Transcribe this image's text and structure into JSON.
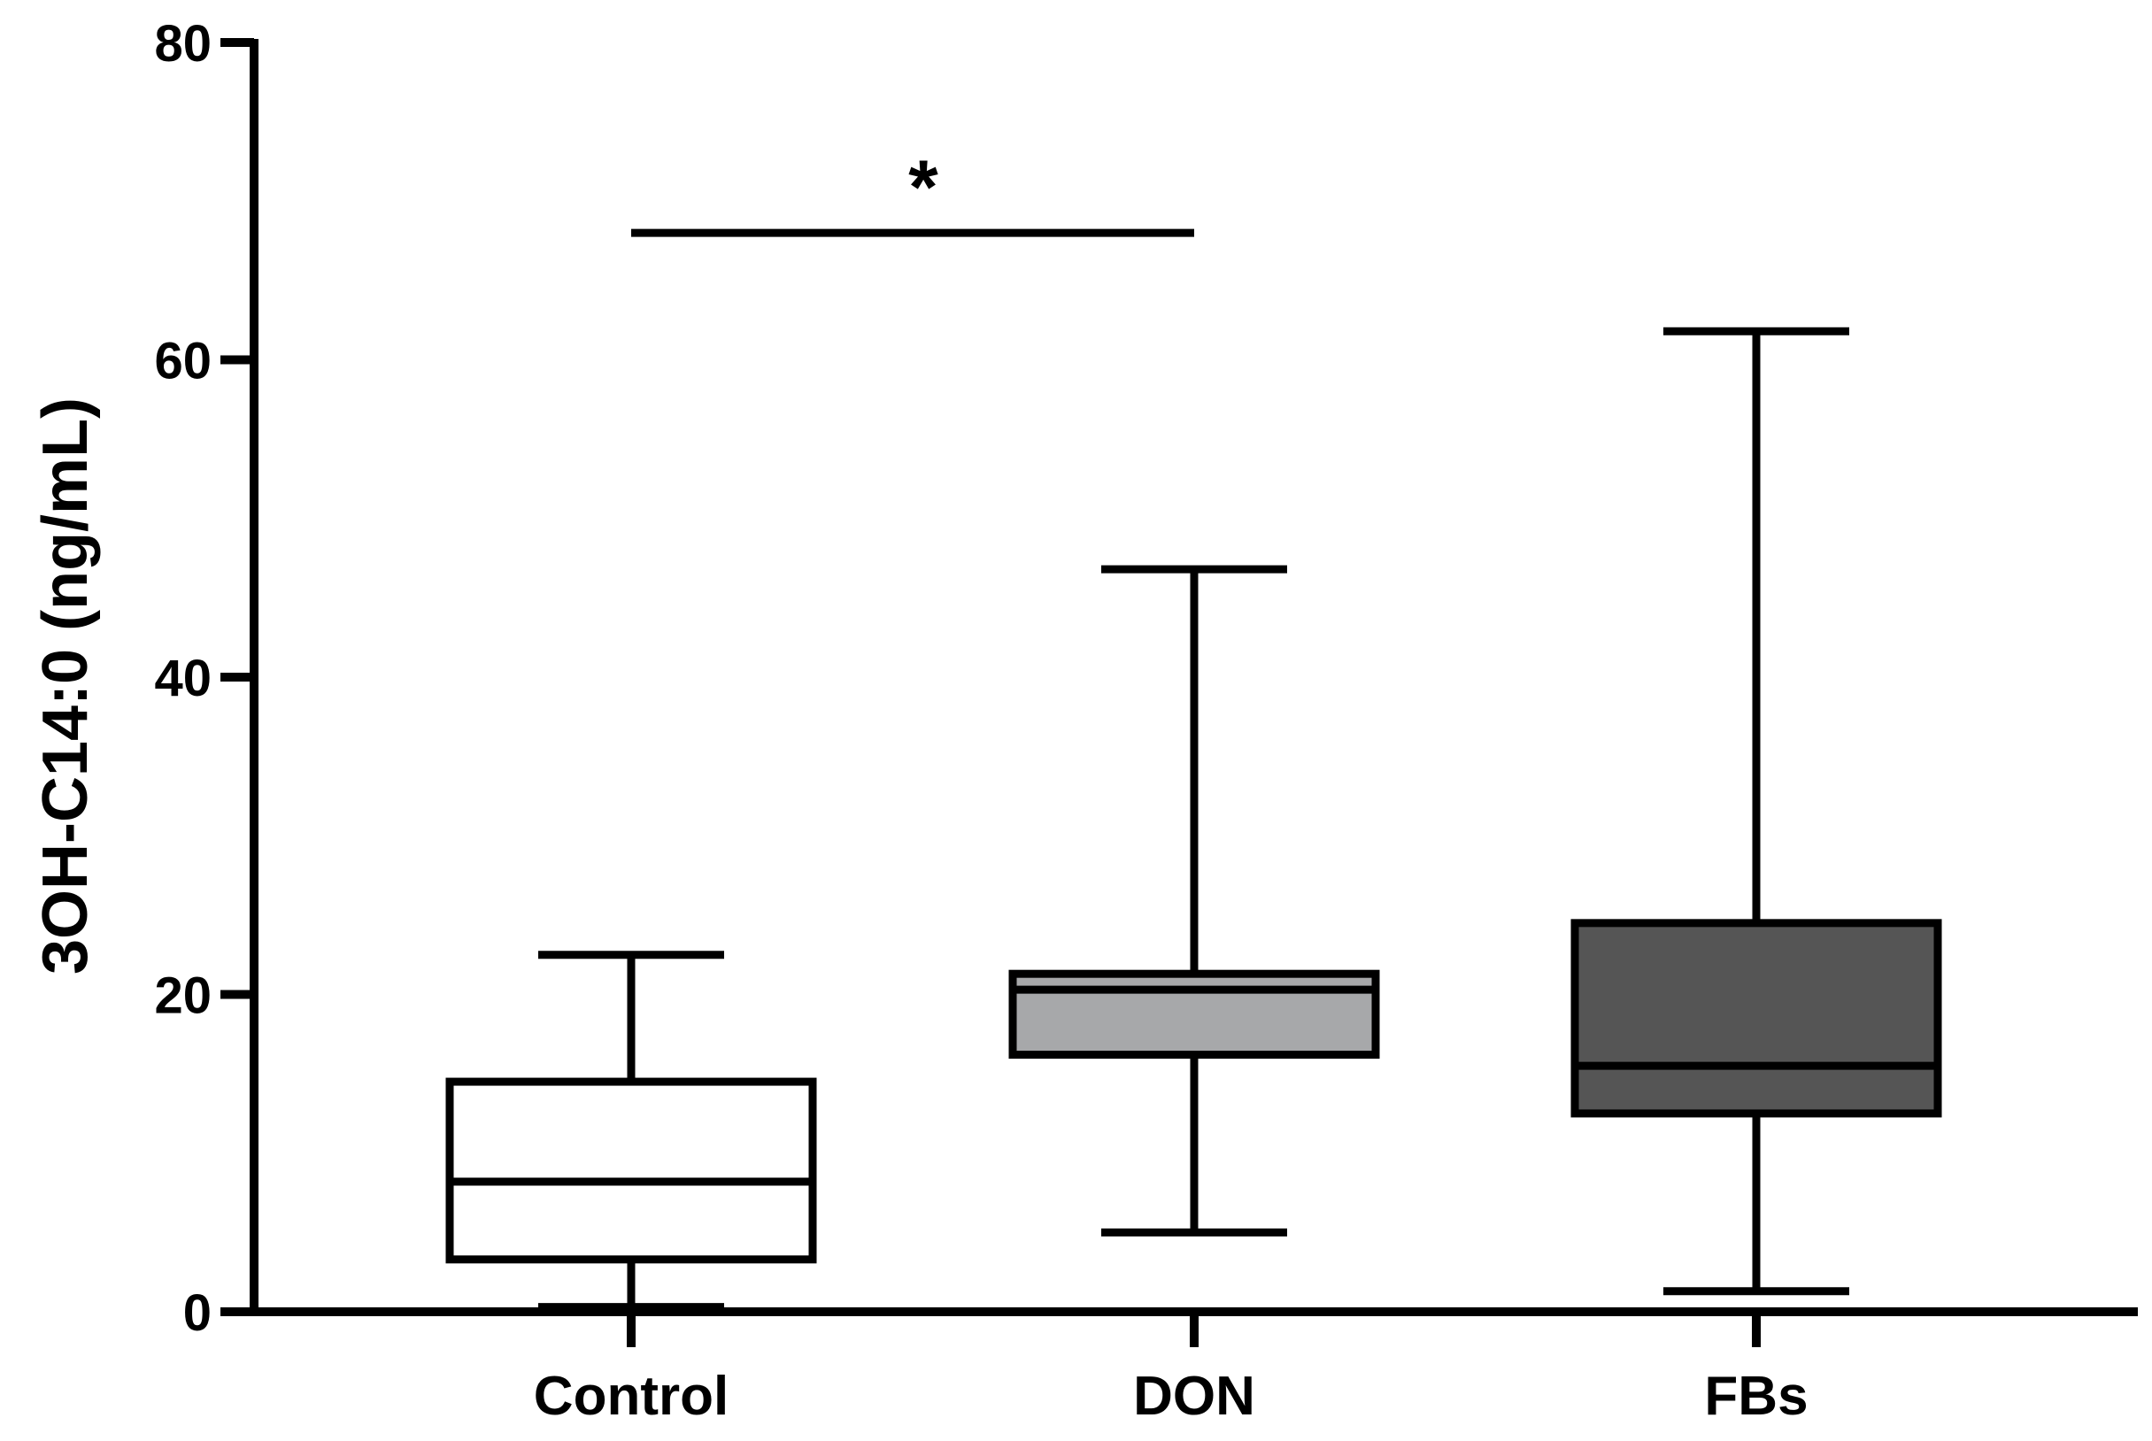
{
  "chart_data": {
    "type": "box",
    "ylabel": "3OH-C14:0 (ng/mL)",
    "xlabel": "",
    "ylim": [
      0,
      80
    ],
    "yticks": [
      0,
      20,
      40,
      60,
      80
    ],
    "categories": [
      "Control",
      "DON",
      "FBs"
    ],
    "boxes": [
      {
        "category": "Control",
        "min": 0.3,
        "q1": 3.3,
        "median": 8.2,
        "q3": 14.5,
        "max": 22.5,
        "fill": "#ffffff"
      },
      {
        "category": "DON",
        "min": 5.0,
        "q1": 16.2,
        "median": 20.3,
        "q3": 21.3,
        "max": 46.8,
        "fill": "#a7a8aa"
      },
      {
        "category": "FBs",
        "min": 1.3,
        "q1": 12.5,
        "median": 15.5,
        "q3": 24.5,
        "max": 61.8,
        "fill": "#555555"
      }
    ],
    "annotations": [
      {
        "type": "significance",
        "from": "Control",
        "to": "DON",
        "y": 68,
        "label": "*"
      }
    ],
    "grid": false,
    "legend": "none"
  }
}
